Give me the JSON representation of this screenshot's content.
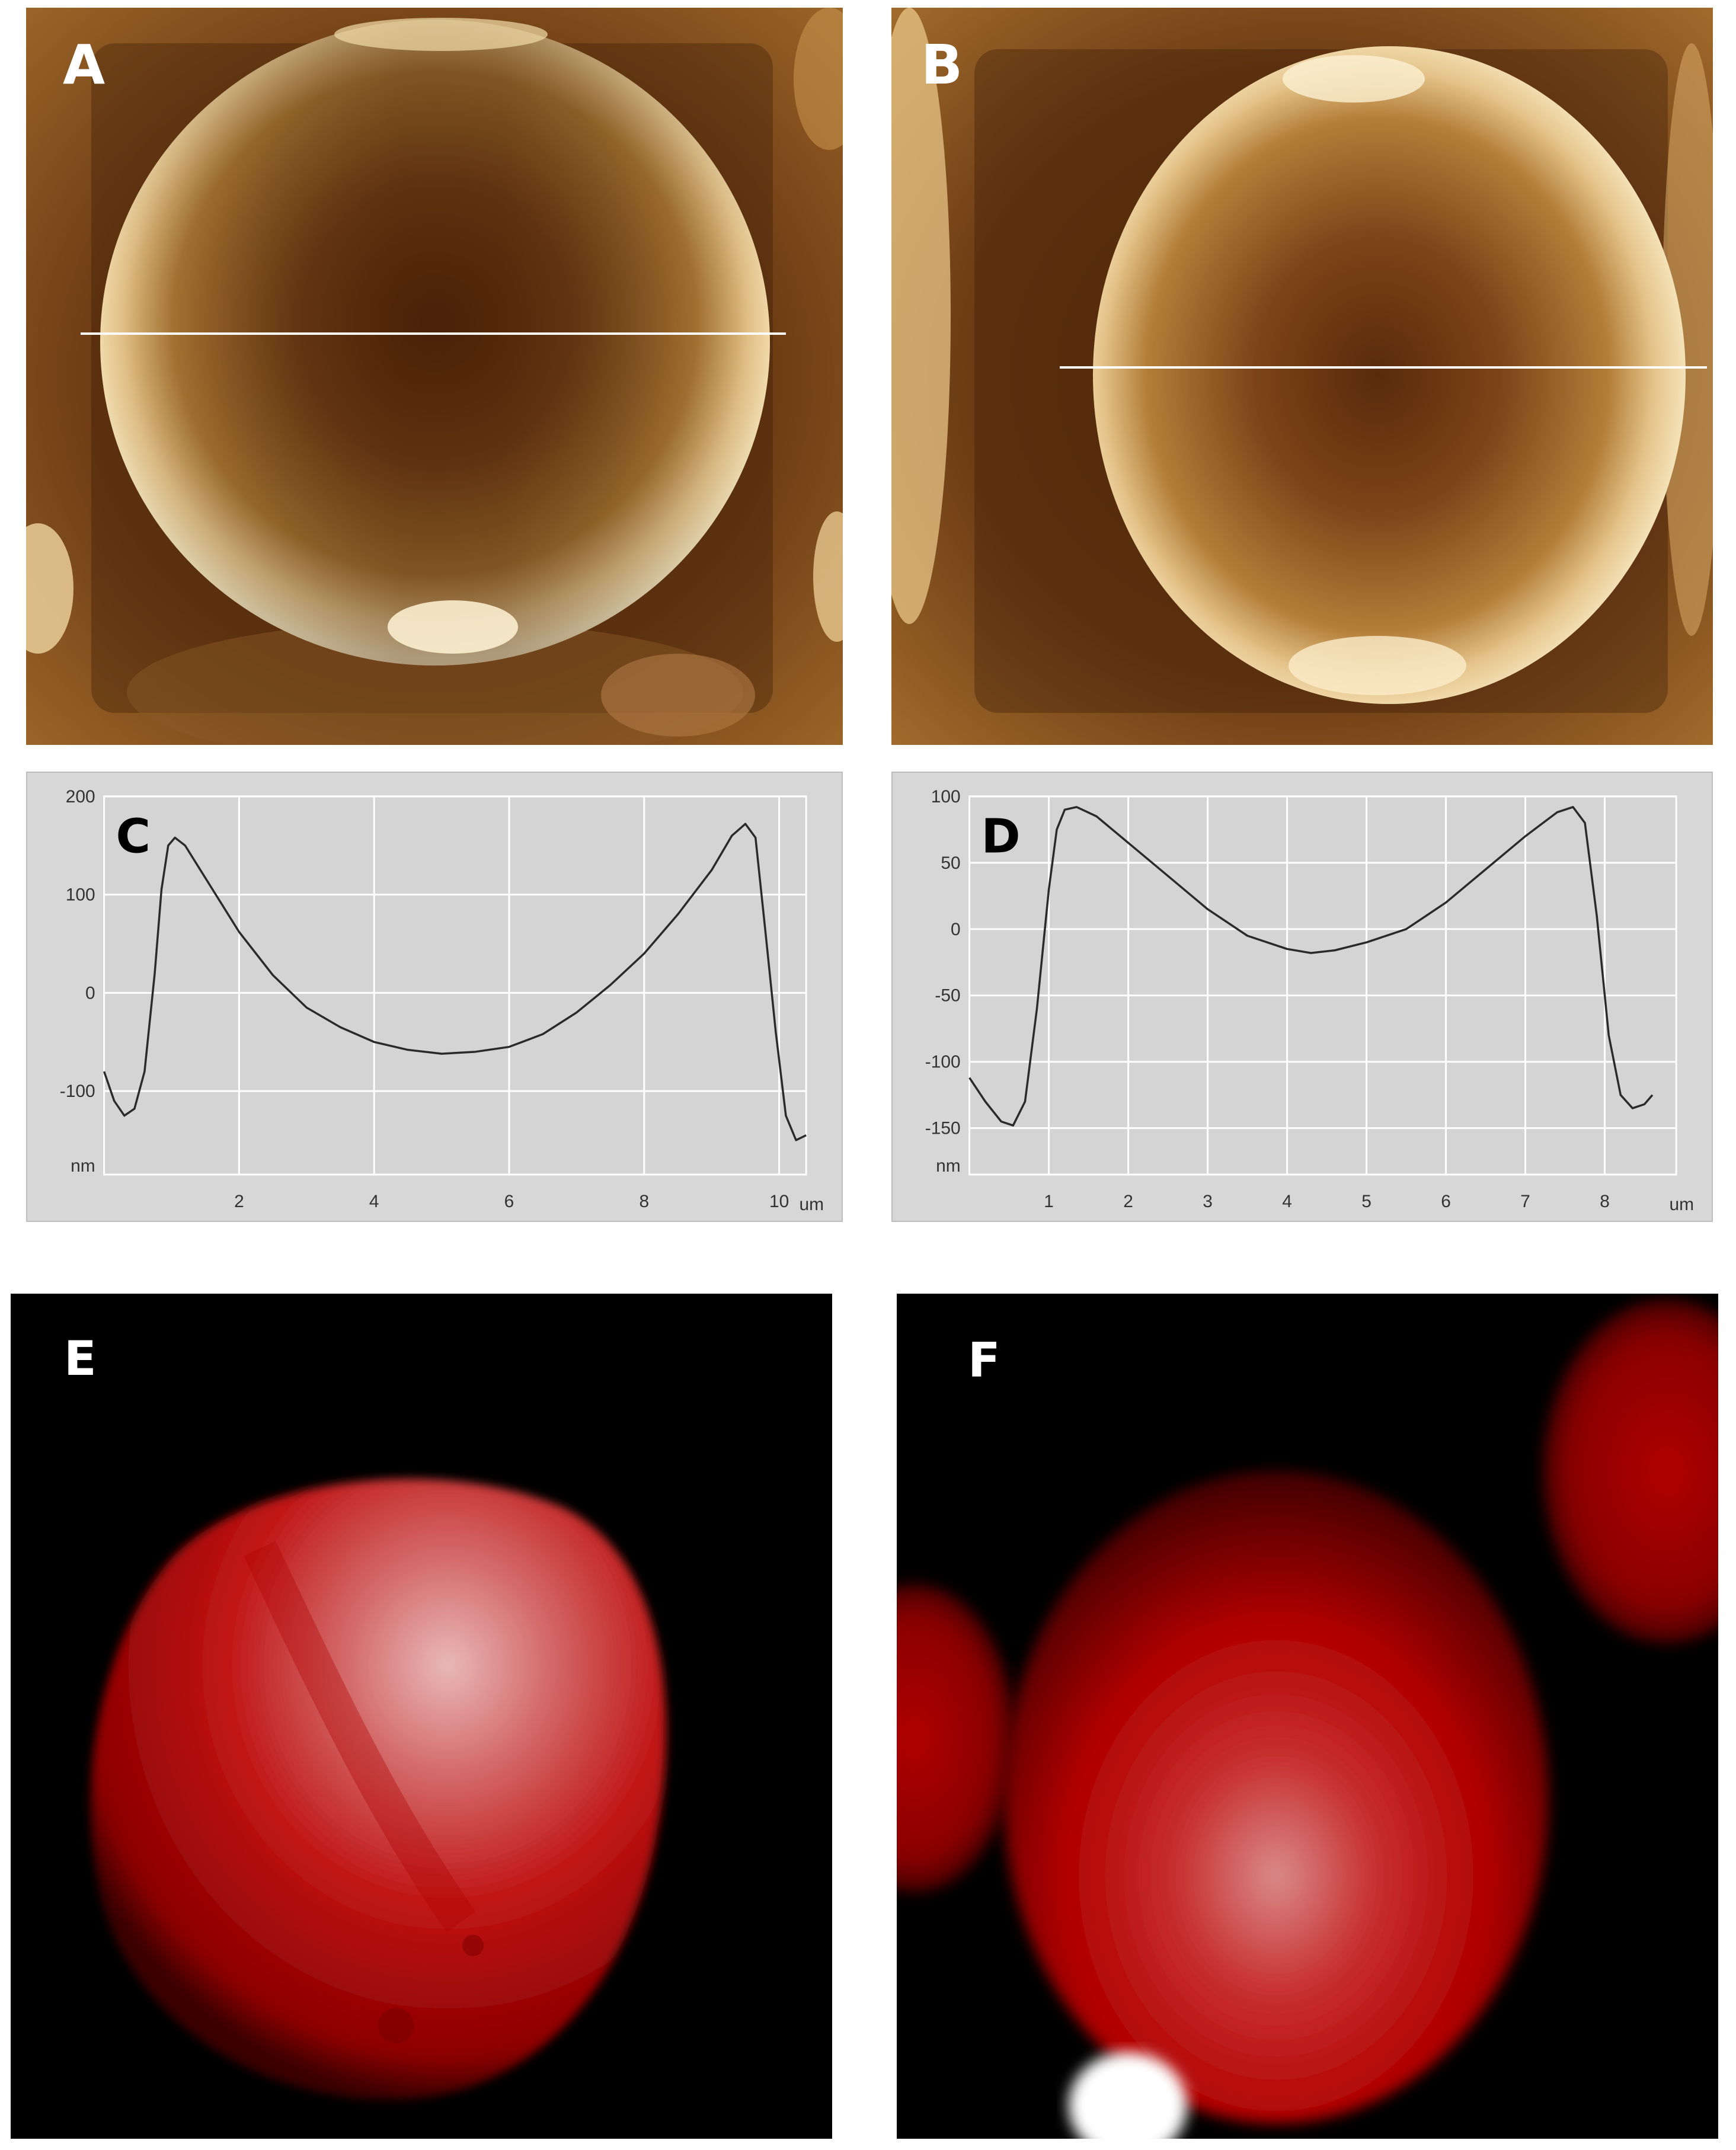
{
  "figure": {
    "panels": {
      "A": {
        "label": "A"
      },
      "B": {
        "label": "B"
      },
      "E": {
        "label": "E"
      },
      "F": {
        "label": "F"
      }
    }
  },
  "chart_data": [
    {
      "type": "line",
      "panel_label": "C",
      "xlabel": "um",
      "ylabel": "nm",
      "xlim": [
        0,
        10.4
      ],
      "ylim": [
        -185,
        200
      ],
      "xticks": [
        2,
        4,
        6,
        8,
        10
      ],
      "yticks": [
        200,
        100,
        0,
        -100
      ],
      "grid": true,
      "series": [
        {
          "x": [
            0.0,
            0.15,
            0.3,
            0.45,
            0.6,
            0.75,
            0.85,
            0.95,
            1.05,
            1.2,
            1.4,
            1.7,
            2.0,
            2.5,
            3.0,
            3.5,
            4.0,
            4.5,
            5.0,
            5.5,
            6.0,
            6.5,
            7.0,
            7.5,
            8.0,
            8.5,
            9.0,
            9.3,
            9.5,
            9.65,
            9.8,
            9.95,
            10.1,
            10.25,
            10.4
          ],
          "y": [
            -80,
            -110,
            -125,
            -118,
            -80,
            20,
            105,
            150,
            158,
            150,
            128,
            95,
            62,
            18,
            -15,
            -35,
            -50,
            -58,
            -62,
            -60,
            -55,
            -42,
            -20,
            8,
            40,
            80,
            125,
            160,
            172,
            158,
            60,
            -40,
            -125,
            -150,
            -145
          ]
        }
      ]
    },
    {
      "type": "line",
      "panel_label": "D",
      "xlabel": "um",
      "ylabel": "nm",
      "xlim": [
        0,
        8.9
      ],
      "ylim": [
        -185,
        100
      ],
      "xticks": [
        1,
        2,
        3,
        4,
        5,
        6,
        7,
        8
      ],
      "yticks": [
        100,
        50,
        0,
        -50,
        -100,
        -150
      ],
      "grid": true,
      "series": [
        {
          "x": [
            0.0,
            0.2,
            0.4,
            0.55,
            0.7,
            0.85,
            1.0,
            1.1,
            1.2,
            1.35,
            1.6,
            2.0,
            2.5,
            3.0,
            3.5,
            4.0,
            4.3,
            4.6,
            5.0,
            5.5,
            6.0,
            6.5,
            7.0,
            7.4,
            7.6,
            7.75,
            7.9,
            8.05,
            8.2,
            8.35,
            8.5,
            8.6
          ],
          "y": [
            -112,
            -130,
            -145,
            -148,
            -130,
            -60,
            30,
            75,
            90,
            92,
            85,
            65,
            40,
            15,
            -5,
            -15,
            -18,
            -16,
            -10,
            0,
            20,
            45,
            70,
            88,
            92,
            80,
            10,
            -80,
            -125,
            -135,
            -132,
            -125
          ]
        }
      ]
    }
  ]
}
